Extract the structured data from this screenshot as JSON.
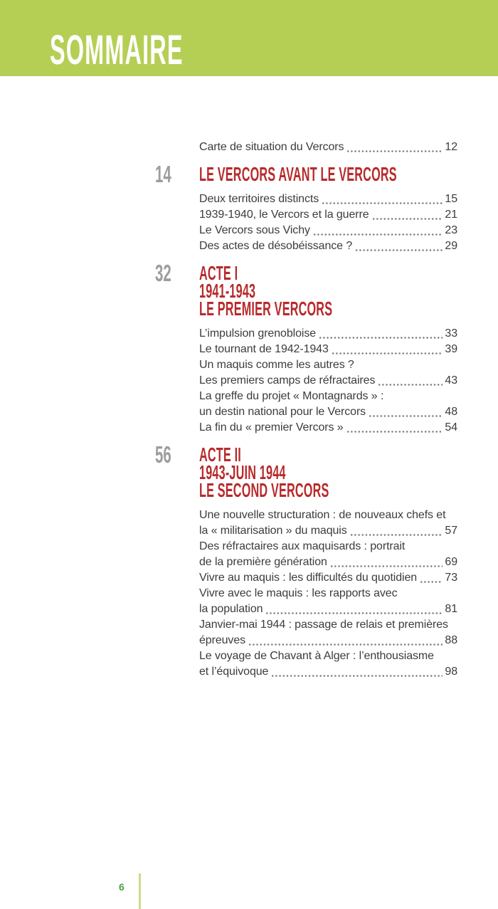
{
  "header": {
    "title": "SOMMAIRE"
  },
  "footer": {
    "page_number": "6"
  },
  "colors": {
    "header_band": "#b5cf55",
    "section_title_red": "#b82a2b",
    "section_number_gray": "#9d9d9d",
    "body_text": "#3c3c3c",
    "footer_number_green": "#4d9e45",
    "footer_rule_green": "#cdda8e"
  },
  "toc": {
    "intro_entries": [
      {
        "lines": [
          "Carte de situation du Vercors"
        ],
        "page": "12"
      }
    ],
    "sections": [
      {
        "number": "14",
        "title_lines": [
          "LE VERCORS AVANT LE VERCORS"
        ],
        "entries": [
          {
            "lines": [
              "Deux territoires distincts"
            ],
            "page": "15"
          },
          {
            "lines": [
              "1939-1940, le Vercors et la guerre"
            ],
            "page": "21"
          },
          {
            "lines": [
              "Le Vercors sous Vichy"
            ],
            "page": "23"
          },
          {
            "lines": [
              "Des actes de désobéissance ?"
            ],
            "page": "29"
          }
        ]
      },
      {
        "number": "32",
        "title_lines": [
          "ACTE I",
          "1941-1943",
          "LE PREMIER VERCORS"
        ],
        "entries": [
          {
            "lines": [
              "L’impulsion grenobloise"
            ],
            "page": "33"
          },
          {
            "lines": [
              "Le tournant de 1942-1943"
            ],
            "page": "39"
          },
          {
            "lines": [
              "Un maquis comme les autres ?",
              "Les premiers camps de réfractaires"
            ],
            "page": "43"
          },
          {
            "lines": [
              "La greffe du projet « Montagnards » :",
              "un destin national pour le Vercors"
            ],
            "page": "48"
          },
          {
            "lines": [
              "La fin du « premier Vercors »"
            ],
            "page": "54"
          }
        ]
      },
      {
        "number": "56",
        "title_lines": [
          "ACTE II",
          "1943-JUIN 1944",
          "LE SECOND VERCORS"
        ],
        "entries": [
          {
            "lines": [
              "Une nouvelle structuration : de nouveaux chefs et",
              "la « militarisation » du maquis"
            ],
            "page": "57"
          },
          {
            "lines": [
              "Des réfractaires aux maquisards : portrait",
              "de la première génération"
            ],
            "page": "69"
          },
          {
            "lines": [
              "Vivre au maquis : les difficultés du quotidien"
            ],
            "page": "73"
          },
          {
            "lines": [
              "Vivre avec le maquis : les rapports avec",
              "la population"
            ],
            "page": "81"
          },
          {
            "lines": [
              "Janvier-mai 1944 : passage de relais et premières",
              "épreuves"
            ],
            "page": "88"
          },
          {
            "lines": [
              "Le voyage de Chavant à Alger : l’enthousiasme",
              "et l’équivoque"
            ],
            "page": "98"
          }
        ]
      }
    ]
  }
}
